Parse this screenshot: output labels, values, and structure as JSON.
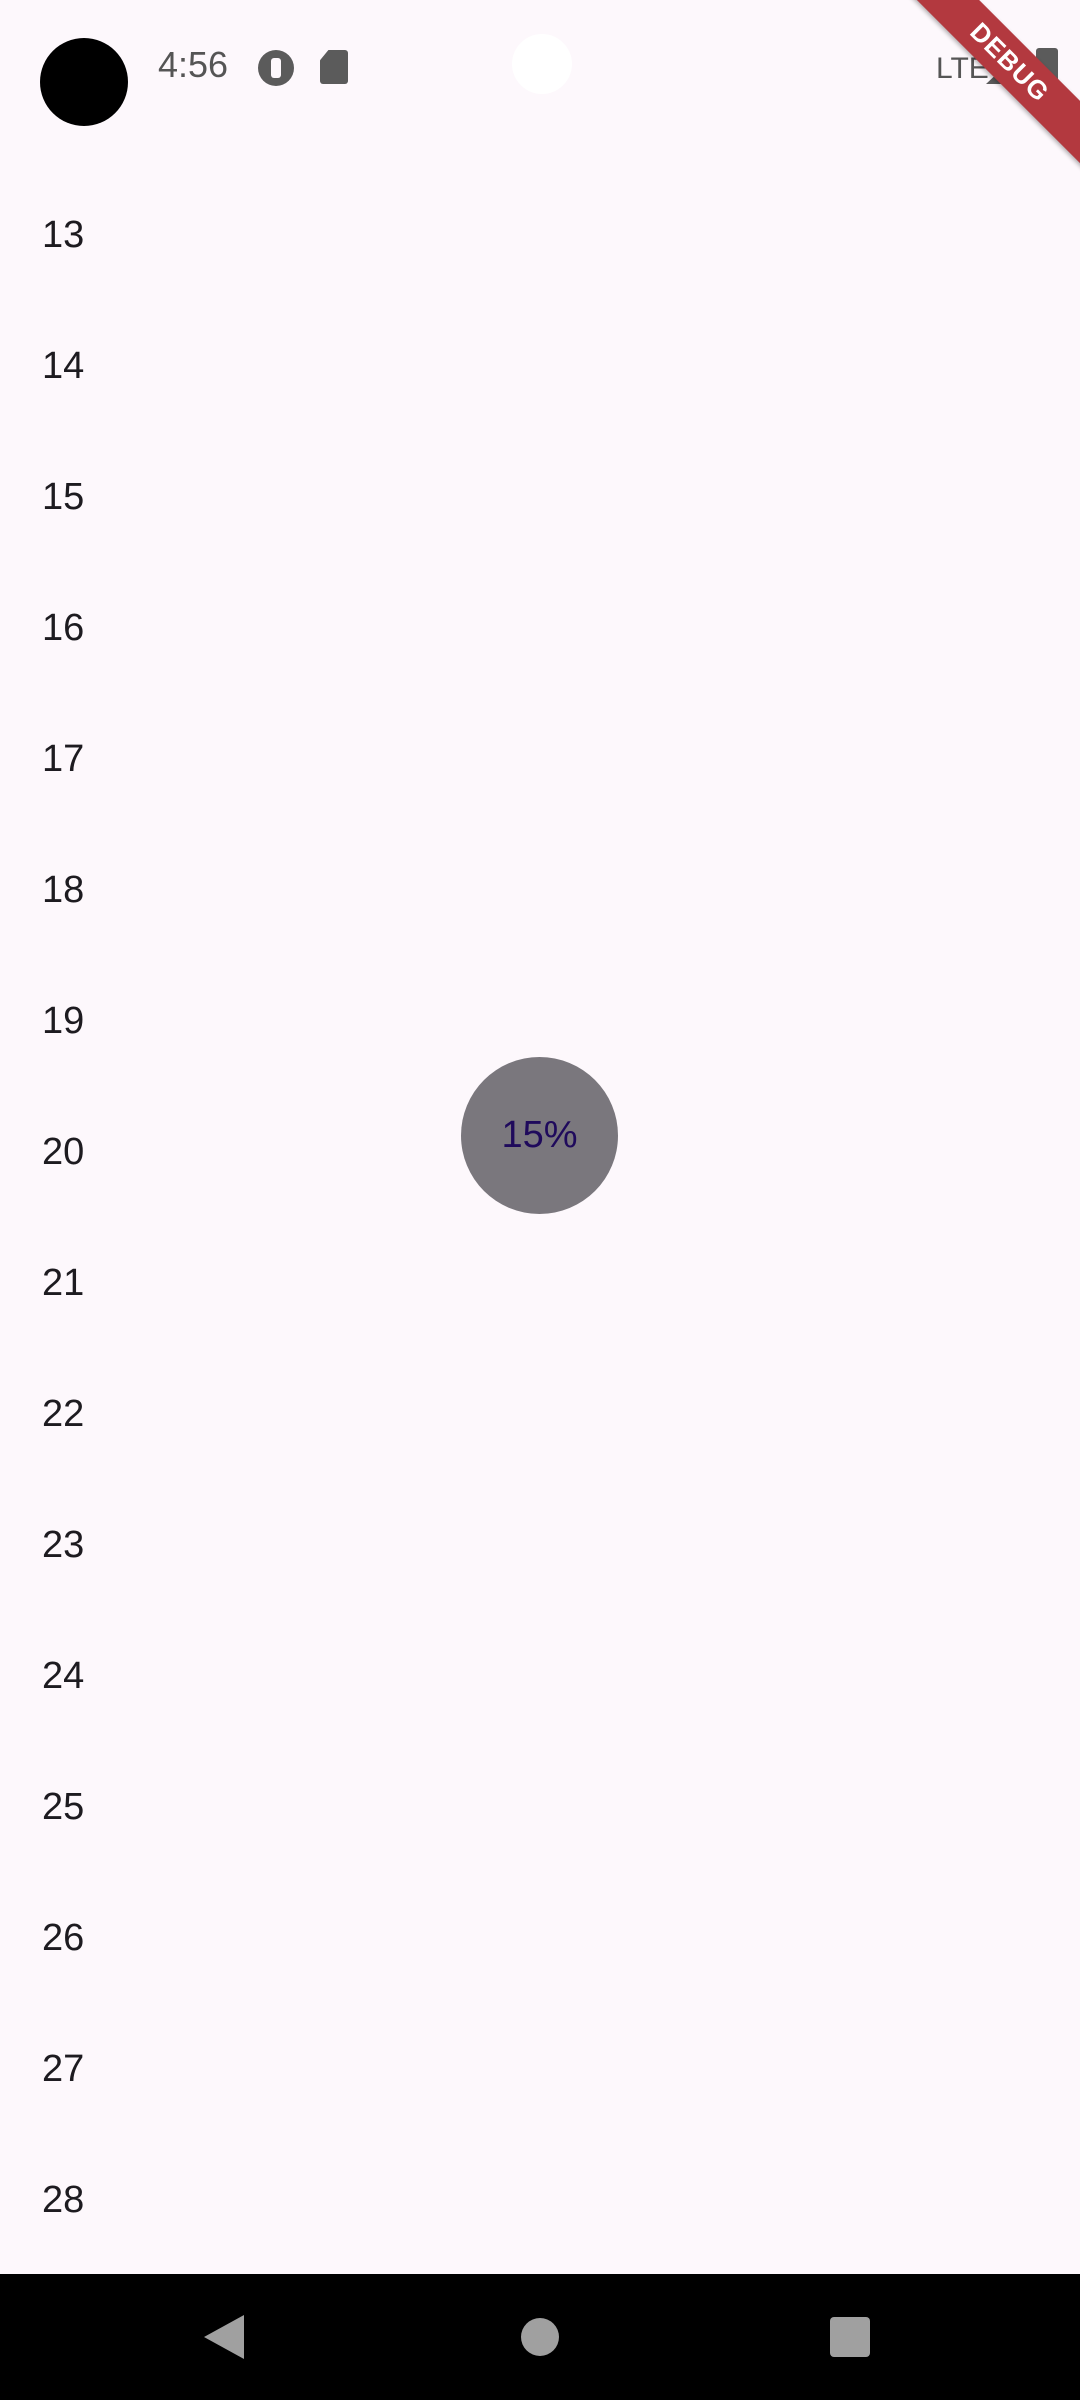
{
  "status_bar": {
    "time": "4:56",
    "network": "LTE",
    "icons": [
      "camera-cutout",
      "app-notification-icon",
      "sd-card-icon",
      "signal-icon",
      "battery-icon"
    ]
  },
  "debug_banner": "DEBUG",
  "list": {
    "items": [
      "13",
      "14",
      "15",
      "16",
      "17",
      "18",
      "19",
      "20",
      "21",
      "22",
      "23",
      "24",
      "25",
      "26",
      "27",
      "28"
    ]
  },
  "progress": {
    "label": "15%",
    "value": 0.15
  },
  "nav_bar": {
    "icons": [
      "back-icon",
      "home-icon",
      "recents-icon"
    ]
  },
  "colors": {
    "background": "#fdf8fc",
    "progress_circle": "#7a777d",
    "progress_text": "#1f0a5c",
    "debug_ribbon": "#b3393f"
  }
}
